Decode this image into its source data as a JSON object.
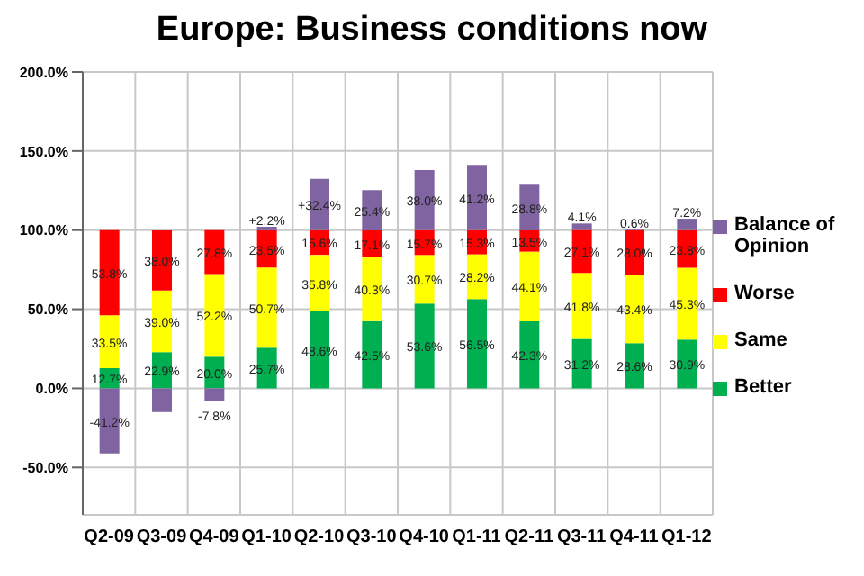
{
  "chart_data": {
    "type": "bar",
    "title": "Europe: Business conditions now",
    "stacked": true,
    "categories": [
      "Q2-09",
      "Q3-09",
      "Q4-09",
      "Q1-10",
      "Q2-10",
      "Q3-10",
      "Q4-10",
      "Q1-11",
      "Q2-11",
      "Q3-11",
      "Q4-11",
      "Q1-12"
    ],
    "series": [
      {
        "name": "Better",
        "color": "#00b050",
        "values": [
          12.7,
          22.9,
          20.0,
          25.7,
          48.6,
          42.5,
          53.6,
          56.5,
          42.3,
          31.2,
          28.6,
          30.9
        ],
        "value_labels": [
          "12.7%",
          "22.9%",
          "20.0%",
          "25.7%",
          "48.6%",
          "42.5%",
          "53.6%",
          "56.5%",
          "42.3%",
          "31.2%",
          "28.6%",
          "30.9%"
        ]
      },
      {
        "name": "Same",
        "color": "#ffff00",
        "values": [
          33.5,
          39.0,
          52.2,
          50.7,
          35.8,
          40.3,
          30.7,
          28.2,
          44.1,
          41.8,
          43.4,
          45.3
        ],
        "value_labels": [
          "33.5%",
          "39.0%",
          "52.2%",
          "50.7%",
          "35.8%",
          "40.3%",
          "30.7%",
          "28.2%",
          "44.1%",
          "41.8%",
          "43.4%",
          "45.3%"
        ]
      },
      {
        "name": "Worse",
        "color": "#ff0000",
        "values": [
          53.8,
          38.0,
          27.8,
          23.5,
          15.6,
          17.1,
          15.7,
          15.3,
          13.5,
          27.1,
          28.0,
          23.8
        ],
        "value_labels": [
          "53.8%",
          "38.0%",
          "27.8%",
          "23.5%",
          "15.6%",
          "17.1%",
          "15.7%",
          "15.3%",
          "13.5%",
          "27.1%",
          "28.0%",
          "23.8%"
        ]
      },
      {
        "name": "Balance of Opinion",
        "color": "#8064a2",
        "values": [
          -41.2,
          -15,
          -7.8,
          2.2,
          32.4,
          25.4,
          38.0,
          41.2,
          28.8,
          4.1,
          0.6,
          7.2
        ],
        "value_labels": [
          "-41.2%",
          null,
          "-7.8%",
          "+2.2%",
          "+32.4%",
          "25.4%",
          "38.0%",
          "41.2%",
          "28.8%",
          "4.1%",
          "0.6%",
          "7.2%"
        ]
      }
    ],
    "ylim": [
      -80,
      200
    ],
    "yticks": [
      {
        "value": -50,
        "label": "-50.0%"
      },
      {
        "value": 0,
        "label": "0.0%"
      },
      {
        "value": 50,
        "label": "50.0%"
      },
      {
        "value": 100,
        "label": "100.0%"
      },
      {
        "value": 150,
        "label": "150.0%"
      },
      {
        "value": 200,
        "label": "200.0%"
      }
    ],
    "grid": true,
    "legend": "right"
  }
}
